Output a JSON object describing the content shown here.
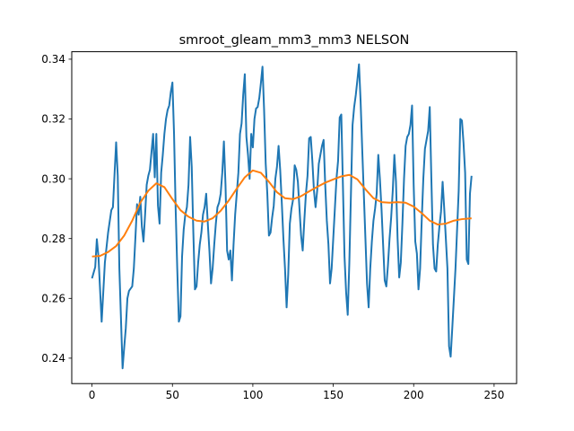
{
  "chart_data": {
    "type": "line",
    "title": "smroot_gleam_mm3_mm3 NELSON",
    "xlabel": "",
    "ylabel": "",
    "xlim": [
      -12.6,
      264
    ],
    "ylim": [
      0.2315,
      0.3425
    ],
    "xticks": [
      0,
      50,
      100,
      150,
      200,
      250
    ],
    "xtick_labels": [
      "0",
      "50",
      "100",
      "150",
      "200",
      "250"
    ],
    "yticks": [
      0.24,
      0.26,
      0.28,
      0.3,
      0.32,
      0.34
    ],
    "ytick_labels": [
      "0.24",
      "0.26",
      "0.28",
      "0.30",
      "0.32",
      "0.34"
    ],
    "grid": false,
    "series": [
      {
        "color": "#1f77b4",
        "points": [
          [
            0,
            0.2667
          ],
          [
            2,
            0.2705
          ],
          [
            3,
            0.2798
          ],
          [
            4,
            0.274
          ],
          [
            6,
            0.2522
          ],
          [
            8,
            0.272
          ],
          [
            10,
            0.282
          ],
          [
            12,
            0.2895
          ],
          [
            13,
            0.2905
          ],
          [
            14,
            0.3015
          ],
          [
            15,
            0.3122
          ],
          [
            16,
            0.301
          ],
          [
            17,
            0.27
          ],
          [
            19,
            0.2366
          ],
          [
            20,
            0.2435
          ],
          [
            21,
            0.25
          ],
          [
            22,
            0.26
          ],
          [
            23,
            0.2625
          ],
          [
            25,
            0.264
          ],
          [
            26,
            0.27
          ],
          [
            27,
            0.2805
          ],
          [
            28,
            0.2915
          ],
          [
            29,
            0.288
          ],
          [
            30,
            0.294
          ],
          [
            31,
            0.284
          ],
          [
            32,
            0.279
          ],
          [
            33,
            0.288
          ],
          [
            34,
            0.298
          ],
          [
            35,
            0.301
          ],
          [
            36,
            0.303
          ],
          [
            37,
            0.309
          ],
          [
            38,
            0.315
          ],
          [
            39,
            0.3005
          ],
          [
            40,
            0.315
          ],
          [
            41,
            0.291
          ],
          [
            42,
            0.285
          ],
          [
            43,
            0.302
          ],
          [
            44,
            0.308
          ],
          [
            45,
            0.315
          ],
          [
            46,
            0.32
          ],
          [
            47,
            0.323
          ],
          [
            48,
            0.3245
          ],
          [
            49,
            0.329
          ],
          [
            50,
            0.3322
          ],
          [
            51,
            0.315
          ],
          [
            52,
            0.29
          ],
          [
            53,
            0.27
          ],
          [
            54,
            0.2522
          ],
          [
            55,
            0.254
          ],
          [
            56,
            0.274
          ],
          [
            57,
            0.283
          ],
          [
            58,
            0.288
          ],
          [
            59,
            0.2905
          ],
          [
            60,
            0.298
          ],
          [
            61,
            0.314
          ],
          [
            62,
            0.304
          ],
          [
            63,
            0.282
          ],
          [
            64,
            0.263
          ],
          [
            65,
            0.264
          ],
          [
            66,
            0.272
          ],
          [
            67,
            0.278
          ],
          [
            68,
            0.282
          ],
          [
            69,
            0.288
          ],
          [
            70,
            0.2905
          ],
          [
            71,
            0.295
          ],
          [
            72,
            0.285
          ],
          [
            73,
            0.276
          ],
          [
            74,
            0.265
          ],
          [
            75,
            0.27
          ],
          [
            76,
            0.278
          ],
          [
            77,
            0.285
          ],
          [
            78,
            0.2905
          ],
          [
            79,
            0.292
          ],
          [
            80,
            0.295
          ],
          [
            81,
            0.302
          ],
          [
            82,
            0.3125
          ],
          [
            83,
            0.298
          ],
          [
            84,
            0.276
          ],
          [
            85,
            0.273
          ],
          [
            86,
            0.276
          ],
          [
            87,
            0.266
          ],
          [
            88,
            0.278
          ],
          [
            89,
            0.288
          ],
          [
            90,
            0.295
          ],
          [
            91,
            0.302
          ],
          [
            92,
            0.315
          ],
          [
            93,
            0.3185
          ],
          [
            94,
            0.328
          ],
          [
            95,
            0.335
          ],
          [
            96,
            0.314
          ],
          [
            97,
            0.308
          ],
          [
            98,
            0.3
          ],
          [
            99,
            0.315
          ],
          [
            100,
            0.3105
          ],
          [
            101,
            0.32
          ],
          [
            102,
            0.3235
          ],
          [
            103,
            0.324
          ],
          [
            104,
            0.327
          ],
          [
            105,
            0.332
          ],
          [
            106,
            0.3375
          ],
          [
            107,
            0.323
          ],
          [
            108,
            0.305
          ],
          [
            109,
            0.295
          ],
          [
            110,
            0.281
          ],
          [
            111,
            0.282
          ],
          [
            112,
            0.287
          ],
          [
            113,
            0.291
          ],
          [
            114,
            0.3
          ],
          [
            115,
            0.304
          ],
          [
            116,
            0.311
          ],
          [
            117,
            0.303
          ],
          [
            118,
            0.292
          ],
          [
            119,
            0.28
          ],
          [
            120,
            0.27
          ],
          [
            121,
            0.257
          ],
          [
            122,
            0.268
          ],
          [
            123,
            0.285
          ],
          [
            124,
            0.29
          ],
          [
            125,
            0.293
          ],
          [
            126,
            0.3045
          ],
          [
            127,
            0.303
          ],
          [
            128,
            0.299
          ],
          [
            129,
            0.29
          ],
          [
            130,
            0.281
          ],
          [
            131,
            0.276
          ],
          [
            132,
            0.286
          ],
          [
            133,
            0.295
          ],
          [
            134,
            0.301
          ],
          [
            135,
            0.3135
          ],
          [
            136,
            0.314
          ],
          [
            137,
            0.306
          ],
          [
            138,
            0.296
          ],
          [
            139,
            0.2905
          ],
          [
            140,
            0.296
          ],
          [
            141,
            0.305
          ],
          [
            142,
            0.308
          ],
          [
            143,
            0.311
          ],
          [
            144,
            0.313
          ],
          [
            145,
            0.298
          ],
          [
            146,
            0.286
          ],
          [
            147,
            0.278
          ],
          [
            148,
            0.265
          ],
          [
            149,
            0.27
          ],
          [
            150,
            0.28
          ],
          [
            151,
            0.29
          ],
          [
            152,
            0.3
          ],
          [
            153,
            0.306
          ],
          [
            154,
            0.3205
          ],
          [
            155,
            0.3215
          ],
          [
            156,
            0.298
          ],
          [
            157,
            0.274
          ],
          [
            158,
            0.262
          ],
          [
            159,
            0.2545
          ],
          [
            160,
            0.272
          ],
          [
            161,
            0.295
          ],
          [
            162,
            0.318
          ],
          [
            163,
            0.324
          ],
          [
            164,
            0.328
          ],
          [
            165,
            0.333
          ],
          [
            166,
            0.3383
          ],
          [
            167,
            0.326
          ],
          [
            168,
            0.31
          ],
          [
            169,
            0.295
          ],
          [
            170,
            0.28
          ],
          [
            171,
            0.265
          ],
          [
            172,
            0.257
          ],
          [
            173,
            0.27
          ],
          [
            174,
            0.279
          ],
          [
            175,
            0.286
          ],
          [
            176,
            0.29
          ],
          [
            177,
            0.295
          ],
          [
            178,
            0.308
          ],
          [
            179,
            0.3
          ],
          [
            180,
            0.29
          ],
          [
            181,
            0.278
          ],
          [
            182,
            0.266
          ],
          [
            183,
            0.264
          ],
          [
            184,
            0.271
          ],
          [
            185,
            0.28
          ],
          [
            186,
            0.287
          ],
          [
            187,
            0.296
          ],
          [
            188,
            0.308
          ],
          [
            189,
            0.299
          ],
          [
            190,
            0.28
          ],
          [
            191,
            0.267
          ],
          [
            192,
            0.272
          ],
          [
            193,
            0.285
          ],
          [
            194,
            0.3
          ],
          [
            195,
            0.311
          ],
          [
            196,
            0.314
          ],
          [
            197,
            0.315
          ],
          [
            198,
            0.318
          ],
          [
            199,
            0.3245
          ],
          [
            200,
            0.298
          ],
          [
            201,
            0.279
          ],
          [
            202,
            0.275
          ],
          [
            203,
            0.263
          ],
          [
            204,
            0.27
          ],
          [
            205,
            0.286
          ],
          [
            206,
            0.3
          ],
          [
            207,
            0.31
          ],
          [
            208,
            0.313
          ],
          [
            209,
            0.316
          ],
          [
            210,
            0.324
          ],
          [
            211,
            0.3
          ],
          [
            212,
            0.278
          ],
          [
            213,
            0.27
          ],
          [
            214,
            0.269
          ],
          [
            215,
            0.278
          ],
          [
            216,
            0.284
          ],
          [
            217,
            0.289
          ],
          [
            218,
            0.299
          ],
          [
            219,
            0.29
          ],
          [
            220,
            0.28
          ],
          [
            221,
            0.27
          ],
          [
            222,
            0.244
          ],
          [
            223,
            0.2405
          ],
          [
            224,
            0.25
          ],
          [
            225,
            0.26
          ],
          [
            226,
            0.27
          ],
          [
            227,
            0.283
          ],
          [
            228,
            0.296
          ],
          [
            229,
            0.32
          ],
          [
            230,
            0.3195
          ],
          [
            231,
            0.312
          ],
          [
            232,
            0.302
          ],
          [
            233,
            0.273
          ],
          [
            234,
            0.2715
          ],
          [
            235,
            0.295
          ],
          [
            236,
            0.301
          ]
        ]
      },
      {
        "color": "#ff7f0e",
        "points": [
          [
            0,
            0.274
          ],
          [
            5,
            0.2742
          ],
          [
            10,
            0.2755
          ],
          [
            15,
            0.2775
          ],
          [
            20,
            0.281
          ],
          [
            25,
            0.286
          ],
          [
            30,
            0.292
          ],
          [
            35,
            0.296
          ],
          [
            40,
            0.2985
          ],
          [
            45,
            0.2972
          ],
          [
            50,
            0.2932
          ],
          [
            55,
            0.2895
          ],
          [
            60,
            0.2873
          ],
          [
            65,
            0.286
          ],
          [
            70,
            0.2857
          ],
          [
            75,
            0.2868
          ],
          [
            80,
            0.2893
          ],
          [
            85,
            0.2927
          ],
          [
            90,
            0.2967
          ],
          [
            95,
            0.3005
          ],
          [
            100,
            0.3028
          ],
          [
            105,
            0.302
          ],
          [
            110,
            0.299
          ],
          [
            115,
            0.2955
          ],
          [
            120,
            0.2935
          ],
          [
            125,
            0.2932
          ],
          [
            130,
            0.2942
          ],
          [
            135,
            0.2958
          ],
          [
            140,
            0.2973
          ],
          [
            145,
            0.2987
          ],
          [
            150,
            0.2998
          ],
          [
            155,
            0.3008
          ],
          [
            160,
            0.3013
          ],
          [
            165,
            0.2998
          ],
          [
            170,
            0.2965
          ],
          [
            175,
            0.2935
          ],
          [
            180,
            0.2922
          ],
          [
            185,
            0.292
          ],
          [
            190,
            0.2922
          ],
          [
            195,
            0.292
          ],
          [
            200,
            0.2907
          ],
          [
            205,
            0.2885
          ],
          [
            210,
            0.286
          ],
          [
            215,
            0.2847
          ],
          [
            220,
            0.285
          ],
          [
            225,
            0.286
          ],
          [
            230,
            0.2865
          ],
          [
            236,
            0.2868
          ]
        ]
      }
    ]
  }
}
